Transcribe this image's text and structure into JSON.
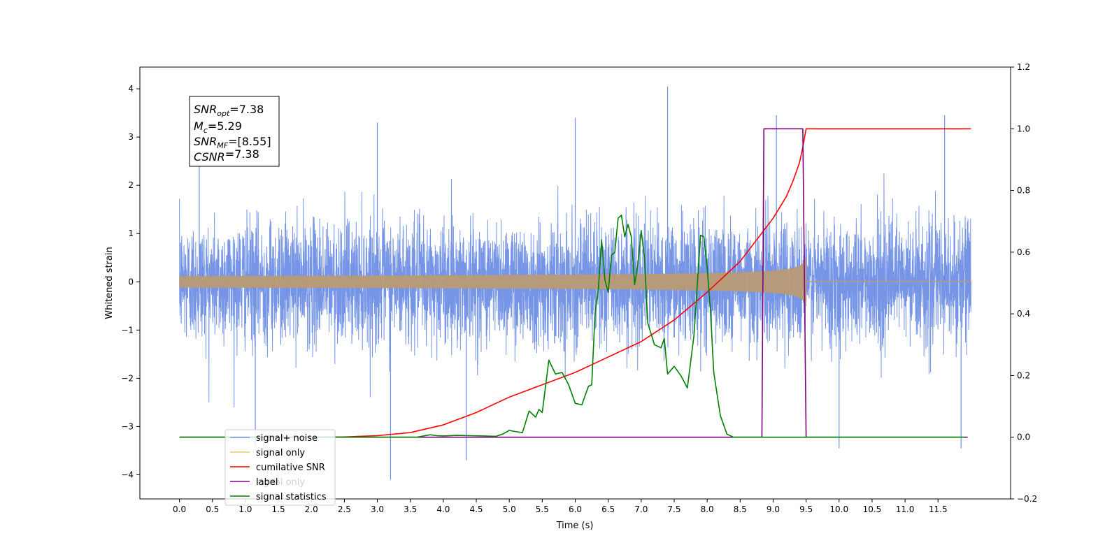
{
  "chart_data": {
    "type": "line",
    "xlabel": "Time (s)",
    "ylabel": "Whitened strain",
    "xlim": [
      -0.6,
      12.6
    ],
    "ylim": [
      -4.5,
      4.45
    ],
    "y2lim": [
      -0.2,
      1.2
    ],
    "x_ticks": [
      "0.0",
      "0.5",
      "1.0",
      "1.5",
      "2.0",
      "2.5",
      "3.0",
      "3.5",
      "4.0",
      "4.5",
      "5.0",
      "5.5",
      "6.0",
      "6.5",
      "7.0",
      "7.5",
      "8.0",
      "8.5",
      "9.0",
      "9.5",
      "10.0",
      "10.5",
      "11.0",
      "11.5"
    ],
    "y_ticks": [
      "4",
      "3",
      "2",
      "1",
      "0",
      "−1",
      "−2",
      "−3",
      "−4"
    ],
    "y2_ticks": [
      "1.2",
      "1.0",
      "0.8",
      "0.6",
      "0.4",
      "0.2",
      "0.0",
      "−0.2"
    ],
    "annotation": {
      "lines": [
        {
          "var": "SNR",
          "sub": "opt",
          "value": "=7.38"
        },
        {
          "var": "M",
          "sub": "c",
          "value": "=5.29"
        },
        {
          "var": "SNR",
          "sub": "MF",
          "value": "=[8.55]"
        },
        {
          "var": "CSNR",
          "sub": "",
          "value": "=7.38"
        }
      ]
    },
    "legend": {
      "placement": "lower-left",
      "entries": [
        {
          "label": "signal+ noise",
          "color": "#6f8fe5"
        },
        {
          "label": "signal only",
          "color": "#f5c46b"
        },
        {
          "label": "cumilative SNR",
          "color": "#ff0000"
        },
        {
          "label": "label",
          "color": "#800080"
        },
        {
          "label": "signal statistics",
          "color": "#008000"
        }
      ],
      "hidden_text": "signal only"
    },
    "series": [
      {
        "name": "signal+ noise",
        "axis": "left",
        "kind": "noise",
        "color": "#6f8fe5",
        "t_start": 0.0,
        "t_end": 12.0,
        "sigma": 0.62,
        "spikes": [
          [
            0.3,
            2.8
          ],
          [
            1.15,
            -3.4
          ],
          [
            3.0,
            3.3
          ],
          [
            3.2,
            -4.1
          ],
          [
            4.35,
            -3.7
          ],
          [
            6.0,
            3.4
          ],
          [
            7.4,
            4.05
          ],
          [
            9.05,
            3.45
          ],
          [
            10.0,
            -3.45
          ],
          [
            11.6,
            3.45
          ],
          [
            11.85,
            -3.45
          ]
        ]
      },
      {
        "name": "signal only",
        "axis": "left",
        "kind": "chirp",
        "color": "#b89a75",
        "t_start": 0.0,
        "t_end": 9.5,
        "amp_end": 0.65,
        "post_merger_end": 9.6
      },
      {
        "name": "cumilative SNR",
        "axis": "right",
        "color": "#ff0000",
        "x": [
          0.0,
          1.0,
          2.0,
          2.5,
          3.0,
          3.5,
          4.0,
          4.5,
          5.0,
          5.5,
          6.0,
          6.5,
          7.0,
          7.5,
          8.0,
          8.5,
          9.0,
          9.2,
          9.3,
          9.4,
          9.45,
          9.5,
          9.55,
          10.0,
          11.0,
          12.0
        ],
        "y": [
          0.0,
          0.0,
          0.0,
          0.001,
          0.005,
          0.015,
          0.04,
          0.08,
          0.13,
          0.17,
          0.21,
          0.26,
          0.31,
          0.38,
          0.47,
          0.57,
          0.71,
          0.78,
          0.83,
          0.89,
          0.94,
          1.0,
          1.0,
          1.0,
          1.0,
          1.0
        ]
      },
      {
        "name": "label",
        "axis": "right",
        "color": "#800080",
        "x": [
          0.0,
          8.83,
          8.86,
          9.42,
          9.45,
          9.5,
          11.95
        ],
        "y": [
          0.0,
          0.0,
          1.0,
          1.0,
          1.0,
          0.0,
          0.0
        ]
      },
      {
        "name": "signal statistics",
        "axis": "right",
        "color": "#008000",
        "x": [
          0.0,
          3.6,
          3.8,
          3.9,
          4.0,
          4.2,
          4.4,
          4.6,
          4.8,
          4.9,
          5.0,
          5.1,
          5.2,
          5.3,
          5.4,
          5.45,
          5.5,
          5.6,
          5.7,
          5.8,
          5.9,
          6.0,
          6.1,
          6.2,
          6.25,
          6.3,
          6.35,
          6.4,
          6.45,
          6.5,
          6.55,
          6.6,
          6.65,
          6.7,
          6.75,
          6.8,
          6.85,
          6.9,
          6.95,
          7.0,
          7.05,
          7.1,
          7.2,
          7.3,
          7.35,
          7.4,
          7.5,
          7.6,
          7.7,
          7.8,
          7.9,
          7.95,
          8.0,
          8.05,
          8.1,
          8.2,
          8.3,
          8.4,
          8.5,
          11.9
        ],
        "y": [
          0.0,
          0.0,
          0.008,
          0.005,
          0.004,
          0.006,
          0.005,
          0.004,
          0.003,
          0.01,
          0.022,
          0.018,
          0.015,
          0.085,
          0.065,
          0.09,
          0.08,
          0.25,
          0.205,
          0.21,
          0.17,
          0.11,
          0.105,
          0.165,
          0.17,
          0.4,
          0.48,
          0.64,
          0.51,
          0.47,
          0.59,
          0.6,
          0.71,
          0.72,
          0.65,
          0.69,
          0.65,
          0.495,
          0.56,
          0.67,
          0.58,
          0.37,
          0.3,
          0.29,
          0.32,
          0.205,
          0.23,
          0.2,
          0.16,
          0.33,
          0.655,
          0.65,
          0.55,
          0.41,
          0.21,
          0.07,
          0.01,
          0.0,
          0.0,
          0.0
        ]
      }
    ]
  }
}
